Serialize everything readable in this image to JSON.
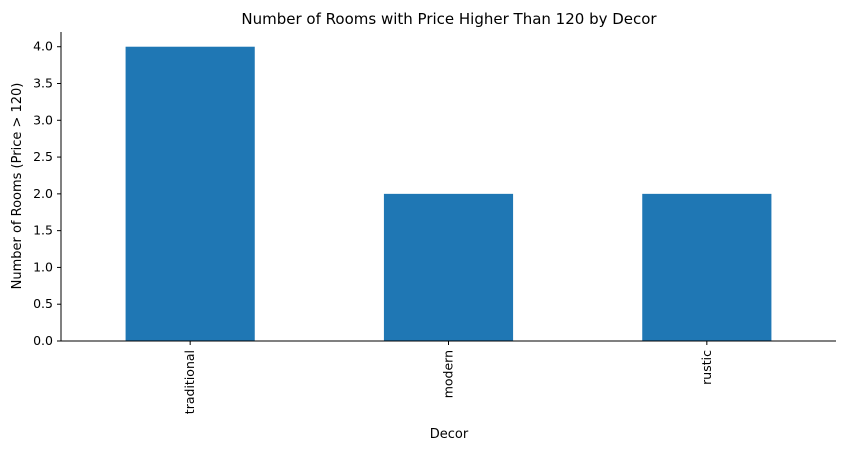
{
  "chart_data": {
    "type": "bar",
    "title": "Number of Rooms with Price Higher Than 120 by Decor",
    "xlabel": "Decor",
    "ylabel": "Number of Rooms (Price > 120)",
    "categories": [
      "traditional",
      "modern",
      "rustic"
    ],
    "values": [
      4,
      2,
      2
    ],
    "ylim": [
      0,
      4.2
    ],
    "yticks": [
      "0.0",
      "0.5",
      "1.0",
      "1.5",
      "2.0",
      "2.5",
      "3.0",
      "3.5",
      "4.0"
    ],
    "bar_color": "#1f77b4",
    "grid": false,
    "legend": "none",
    "x_tick_rotation": "vertical"
  }
}
